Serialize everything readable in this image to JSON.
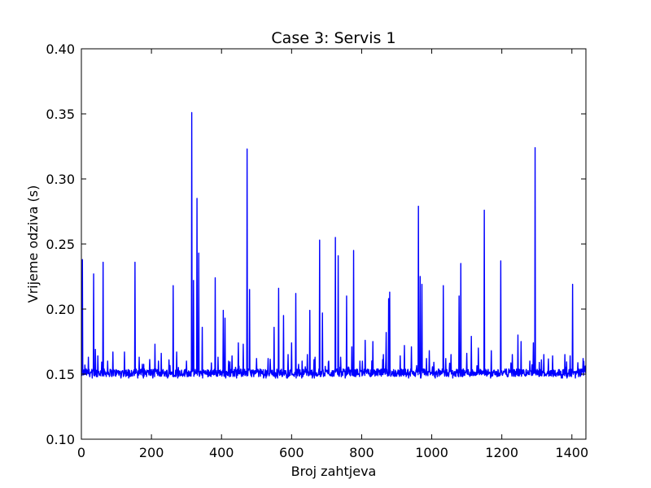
{
  "chart_data": {
    "type": "line",
    "title": "Case 3: Servis 1",
    "xlabel": "Broj zahtjeva",
    "ylabel": "Vrijeme odziva (s)",
    "xlim": [
      0,
      1440
    ],
    "ylim": [
      0.1,
      0.4
    ],
    "xticks": [
      0,
      200,
      400,
      600,
      800,
      1000,
      1200,
      1400
    ],
    "xtick_labels": [
      "0",
      "200",
      "400",
      "600",
      "800",
      "1000",
      "1200",
      "1400"
    ],
    "yticks": [
      0.1,
      0.15,
      0.2,
      0.25,
      0.3,
      0.35,
      0.4
    ],
    "ytick_labels": [
      "0.10",
      "0.15",
      "0.20",
      "0.25",
      "0.30",
      "0.35",
      "0.40"
    ],
    "grid": false,
    "legend": "none",
    "series": [
      {
        "color": "#0000ff",
        "baseline": 0.151,
        "peaks": [
          [
            3,
            0.238
          ],
          [
            10,
            0.157
          ],
          [
            20,
            0.163
          ],
          [
            35,
            0.227
          ],
          [
            40,
            0.169
          ],
          [
            47,
            0.164
          ],
          [
            62,
            0.236
          ],
          [
            75,
            0.16
          ],
          [
            90,
            0.167
          ],
          [
            123,
            0.167
          ],
          [
            153,
            0.236
          ],
          [
            165,
            0.163
          ],
          [
            210,
            0.173
          ],
          [
            220,
            0.16
          ],
          [
            228,
            0.166
          ],
          [
            250,
            0.161
          ],
          [
            262,
            0.218
          ],
          [
            272,
            0.167
          ],
          [
            300,
            0.16
          ],
          [
            315,
            0.351
          ],
          [
            320,
            0.222
          ],
          [
            330,
            0.285
          ],
          [
            335,
            0.243
          ],
          [
            345,
            0.186
          ],
          [
            382,
            0.224
          ],
          [
            390,
            0.163
          ],
          [
            405,
            0.199
          ],
          [
            410,
            0.193
          ],
          [
            420,
            0.16
          ],
          [
            430,
            0.164
          ],
          [
            448,
            0.174
          ],
          [
            462,
            0.173
          ],
          [
            473,
            0.323
          ],
          [
            480,
            0.215
          ],
          [
            500,
            0.162
          ],
          [
            533,
            0.162
          ],
          [
            550,
            0.186
          ],
          [
            563,
            0.216
          ],
          [
            577,
            0.195
          ],
          [
            590,
            0.165
          ],
          [
            600,
            0.174
          ],
          [
            612,
            0.212
          ],
          [
            630,
            0.16
          ],
          [
            645,
            0.165
          ],
          [
            652,
            0.199
          ],
          [
            667,
            0.163
          ],
          [
            680,
            0.253
          ],
          [
            688,
            0.197
          ],
          [
            706,
            0.16
          ],
          [
            725,
            0.255
          ],
          [
            733,
            0.241
          ],
          [
            740,
            0.163
          ],
          [
            757,
            0.21
          ],
          [
            772,
            0.171
          ],
          [
            777,
            0.245
          ],
          [
            795,
            0.16
          ],
          [
            810,
            0.176
          ],
          [
            832,
            0.175
          ],
          [
            862,
            0.165
          ],
          [
            870,
            0.182
          ],
          [
            877,
            0.208
          ],
          [
            880,
            0.213
          ],
          [
            910,
            0.164
          ],
          [
            922,
            0.172
          ],
          [
            942,
            0.171
          ],
          [
            962,
            0.279
          ],
          [
            967,
            0.225
          ],
          [
            972,
            0.219
          ],
          [
            985,
            0.162
          ],
          [
            993,
            0.168
          ],
          [
            1033,
            0.218
          ],
          [
            1040,
            0.162
          ],
          [
            1055,
            0.165
          ],
          [
            1078,
            0.21
          ],
          [
            1083,
            0.235
          ],
          [
            1100,
            0.166
          ],
          [
            1113,
            0.179
          ],
          [
            1133,
            0.17
          ],
          [
            1150,
            0.276
          ],
          [
            1170,
            0.168
          ],
          [
            1197,
            0.237
          ],
          [
            1230,
            0.165
          ],
          [
            1246,
            0.18
          ],
          [
            1255,
            0.175
          ],
          [
            1280,
            0.16
          ],
          [
            1290,
            0.174
          ],
          [
            1295,
            0.324
          ],
          [
            1313,
            0.161
          ],
          [
            1320,
            0.165
          ],
          [
            1345,
            0.164
          ],
          [
            1380,
            0.165
          ],
          [
            1395,
            0.164
          ],
          [
            1402,
            0.219
          ],
          [
            1432,
            0.162
          ]
        ]
      }
    ]
  }
}
